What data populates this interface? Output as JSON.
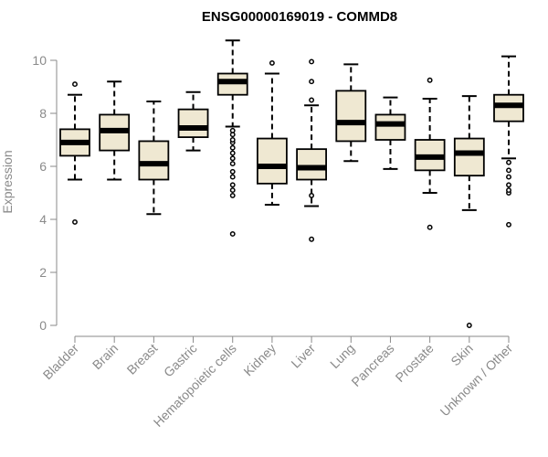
{
  "chart_data": {
    "type": "boxplot",
    "title": "ENSG00000169019 - COMMD8",
    "ylabel": "Expression",
    "xlabel": "",
    "ylim": [
      0,
      10
    ],
    "yticks": [
      0,
      2,
      4,
      6,
      8,
      10
    ],
    "grid": false,
    "colors": {
      "box_fill": "#efe8d2",
      "stroke": "#000000",
      "axis": "#8a8a8a"
    },
    "categories": [
      "Bladder",
      "Brain",
      "Breast",
      "Gastric",
      "Hematopoietic cells",
      "Kidney",
      "Liver",
      "Lung",
      "Pancreas",
      "Prostate",
      "Skin",
      "Unknown / Other"
    ],
    "boxes": [
      {
        "label": "Bladder",
        "whisker_low": 5.5,
        "q1": 6.4,
        "median": 6.9,
        "q3": 7.4,
        "whisker_high": 8.7,
        "outliers": [
          3.9,
          9.1
        ]
      },
      {
        "label": "Brain",
        "whisker_low": 5.5,
        "q1": 6.6,
        "median": 7.35,
        "q3": 7.95,
        "whisker_high": 9.2,
        "outliers": []
      },
      {
        "label": "Breast",
        "whisker_low": 4.2,
        "q1": 5.5,
        "median": 6.1,
        "q3": 6.95,
        "whisker_high": 8.45,
        "outliers": []
      },
      {
        "label": "Gastric",
        "whisker_low": 6.6,
        "q1": 7.1,
        "median": 7.45,
        "q3": 8.15,
        "whisker_high": 8.8,
        "outliers": []
      },
      {
        "label": "Hematopoietic cells",
        "whisker_low": 7.5,
        "q1": 8.7,
        "median": 9.2,
        "q3": 9.5,
        "whisker_high": 10.75,
        "outliers": [
          3.45,
          4.9,
          5.1,
          5.3,
          5.6,
          5.8,
          6.1,
          6.3,
          6.5,
          6.7,
          6.9,
          7.0,
          7.2,
          7.35
        ]
      },
      {
        "label": "Kidney",
        "whisker_low": 4.55,
        "q1": 5.35,
        "median": 6.0,
        "q3": 7.05,
        "whisker_high": 9.5,
        "outliers": [
          9.9
        ]
      },
      {
        "label": "Liver",
        "whisker_low": 4.5,
        "q1": 5.5,
        "median": 5.95,
        "q3": 6.65,
        "whisker_high": 8.3,
        "outliers": [
          3.25,
          4.9,
          8.5,
          9.2,
          9.95
        ]
      },
      {
        "label": "Lung",
        "whisker_low": 6.2,
        "q1": 6.95,
        "median": 7.65,
        "q3": 8.85,
        "whisker_high": 9.85,
        "outliers": []
      },
      {
        "label": "Pancreas",
        "whisker_low": 5.9,
        "q1": 7.0,
        "median": 7.6,
        "q3": 7.95,
        "whisker_high": 8.6,
        "outliers": []
      },
      {
        "label": "Prostate",
        "whisker_low": 5.0,
        "q1": 5.85,
        "median": 6.35,
        "q3": 7.0,
        "whisker_high": 8.55,
        "outliers": [
          3.7,
          9.25
        ]
      },
      {
        "label": "Skin",
        "whisker_low": 4.35,
        "q1": 5.65,
        "median": 6.5,
        "q3": 7.05,
        "whisker_high": 8.65,
        "outliers": [
          0.0
        ]
      },
      {
        "label": "Unknown / Other",
        "whisker_low": 6.3,
        "q1": 7.7,
        "median": 8.3,
        "q3": 8.7,
        "whisker_high": 10.15,
        "outliers": [
          3.8,
          5.0,
          5.1,
          5.3,
          5.6,
          5.85,
          6.15
        ]
      }
    ]
  }
}
